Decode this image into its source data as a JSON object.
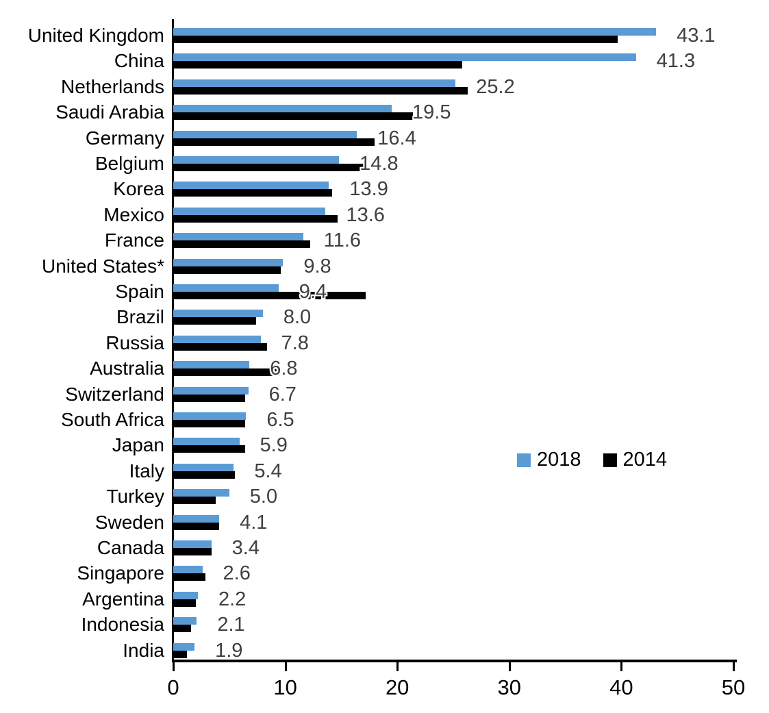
{
  "chart_data": {
    "type": "bar",
    "orientation": "horizontal",
    "title": "",
    "xlabel": "",
    "ylabel": "",
    "categories": [
      "United Kingdom",
      "China",
      "Netherlands",
      "Saudi Arabia",
      "Germany",
      "Belgium",
      "Korea",
      "Mexico",
      "France",
      "United States*",
      "Spain",
      "Brazil",
      "Russia",
      "Australia",
      "Switzerland",
      "South Africa",
      "Japan",
      "Italy",
      "Turkey",
      "Sweden",
      "Canada",
      "Singapore",
      "Argentina",
      "Indonesia",
      "India"
    ],
    "series": [
      {
        "name": "2018",
        "color": "#5B9BD5",
        "values": [
          43.1,
          41.3,
          25.2,
          19.5,
          16.4,
          14.8,
          13.9,
          13.6,
          11.6,
          9.8,
          9.4,
          8.0,
          7.8,
          6.8,
          6.7,
          6.5,
          5.9,
          5.4,
          5.0,
          4.1,
          3.4,
          2.6,
          2.2,
          2.1,
          1.9
        ]
      },
      {
        "name": "2014",
        "color": "#000000",
        "values": [
          39.7,
          25.8,
          26.3,
          21.4,
          18.0,
          17.1,
          14.2,
          14.7,
          12.2,
          9.6,
          17.2,
          7.4,
          8.4,
          9.5,
          6.4,
          6.4,
          6.4,
          5.5,
          3.8,
          4.1,
          3.4,
          2.9,
          2.0,
          1.6,
          1.2
        ]
      }
    ],
    "data_labels": {
      "labeled_series": "2018",
      "values": [
        "43.1",
        "41.3",
        "25.2",
        "19.5",
        "16.4",
        "14.8",
        "13.9",
        "13.6",
        "11.6",
        "9.8",
        "9.4",
        "8.0",
        "7.8",
        "6.8",
        "6.7",
        "6.5",
        "5.9",
        "5.4",
        "5.0",
        "4.1",
        "3.4",
        "2.6",
        "2.2",
        "2.1",
        "1.9"
      ],
      "color": "#404040"
    },
    "xlim": [
      0,
      50
    ],
    "x_ticks": [
      "0",
      "10",
      "20",
      "30",
      "40",
      "50"
    ],
    "x_tick_values": [
      0,
      10,
      20,
      30,
      40,
      50
    ],
    "grid": false,
    "legend": {
      "position": "middle-right",
      "entries": [
        {
          "label": "2018",
          "color": "#5B9BD5"
        },
        {
          "label": "2014",
          "color": "#000000"
        }
      ]
    },
    "axis_color": "#000000",
    "background_color": "#FFFFFF"
  }
}
